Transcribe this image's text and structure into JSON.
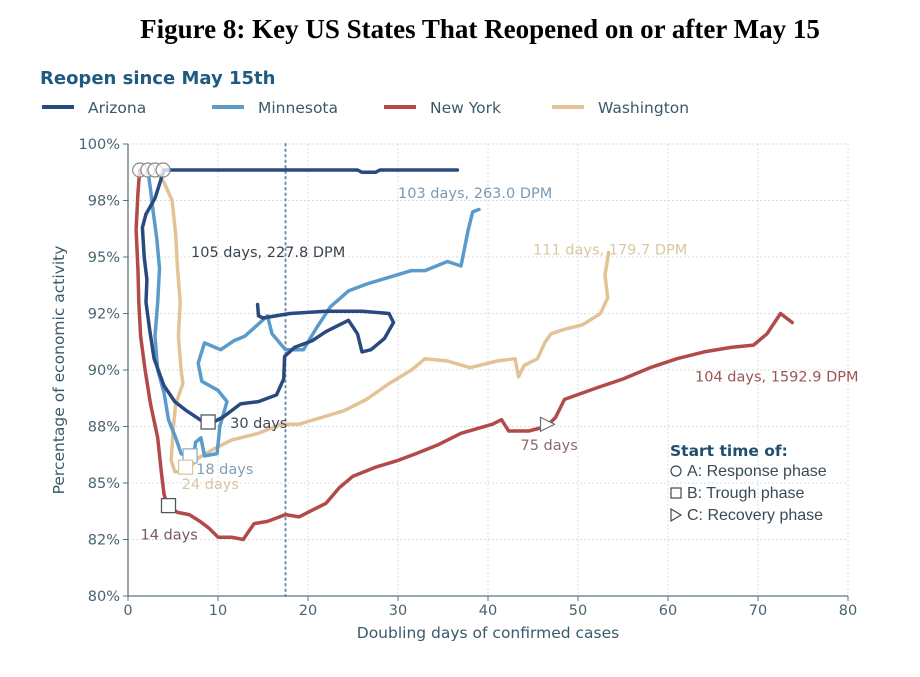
{
  "figure_title": "Figure 8: Key US States That Reopened on or after May 15",
  "chart_data": {
    "type": "line",
    "title": "Reopen since May 15th",
    "xlabel": "Doubling days of confirmed cases",
    "ylabel": "Percentage of economic activity",
    "xlim": [
      0,
      80
    ],
    "ylim": [
      80,
      100
    ],
    "xticks": [
      0,
      10,
      20,
      30,
      40,
      50,
      60,
      70,
      80
    ],
    "xtick_labels": [
      "0",
      "10",
      "20",
      "30",
      "40",
      "50",
      "60",
      "70",
      "80"
    ],
    "yticks": [
      80,
      82.5,
      85,
      87.5,
      90,
      92.5,
      95,
      97.5,
      100
    ],
    "ytick_labels": [
      "80%",
      "82%",
      "85%",
      "88%",
      "90%",
      "92%",
      "95%",
      "98%",
      "100%"
    ],
    "grid": true,
    "legend_position": "top",
    "reference_line": {
      "x": 17.5,
      "style": "dotted"
    },
    "series": [
      {
        "name": "Arizona",
        "color": "#2a4a7f",
        "points": [
          [
            36.6,
            98.85
          ],
          [
            28,
            98.85
          ],
          [
            27.5,
            98.75
          ],
          [
            26,
            98.75
          ],
          [
            25.5,
            98.85
          ],
          [
            4.0,
            98.85
          ],
          [
            3.0,
            97.6
          ],
          [
            2.0,
            96.9
          ],
          [
            1.6,
            96.3
          ],
          [
            1.8,
            95.0
          ],
          [
            2.1,
            94.0
          ],
          [
            2.0,
            93.0
          ],
          [
            2.4,
            91.8
          ],
          [
            2.9,
            90.5
          ],
          [
            4.0,
            89.3
          ],
          [
            5.2,
            88.6
          ],
          [
            6.5,
            88.2
          ],
          [
            8.0,
            87.8
          ],
          [
            9.0,
            87.6
          ],
          [
            10.5,
            87.9
          ],
          [
            12.5,
            88.5
          ],
          [
            14.5,
            88.6
          ],
          [
            16.5,
            88.9
          ],
          [
            17.3,
            89.6
          ],
          [
            17.4,
            90.6
          ],
          [
            18.5,
            91.0
          ],
          [
            20.5,
            91.3
          ],
          [
            22.0,
            91.7
          ],
          [
            24.5,
            92.2
          ],
          [
            25.5,
            91.6
          ],
          [
            26.0,
            90.8
          ],
          [
            27.0,
            90.9
          ],
          [
            28.5,
            91.4
          ],
          [
            29.5,
            92.1
          ],
          [
            29.0,
            92.5
          ],
          [
            26.0,
            92.6
          ],
          [
            22.0,
            92.6
          ],
          [
            18.0,
            92.5
          ],
          [
            15.0,
            92.3
          ],
          [
            14.5,
            92.4
          ],
          [
            14.4,
            92.9
          ]
        ]
      },
      {
        "name": "Minnesota",
        "color": "#5b9bcb",
        "points": [
          [
            2.2,
            98.85
          ],
          [
            2.5,
            98.0
          ],
          [
            2.8,
            97.0
          ],
          [
            3.2,
            95.8
          ],
          [
            3.5,
            94.5
          ],
          [
            3.3,
            93.0
          ],
          [
            3.0,
            91.5
          ],
          [
            3.3,
            90.0
          ],
          [
            4.0,
            89.0
          ],
          [
            4.5,
            87.8
          ],
          [
            5.3,
            87.0
          ],
          [
            5.9,
            86.3
          ],
          [
            6.5,
            86.2
          ],
          [
            7.3,
            86.1
          ],
          [
            7.5,
            86.8
          ],
          [
            8.1,
            87.0
          ],
          [
            8.5,
            86.2
          ],
          [
            9.9,
            86.3
          ],
          [
            10.2,
            87.5
          ],
          [
            11.0,
            88.6
          ],
          [
            10.0,
            89.1
          ],
          [
            8.2,
            89.5
          ],
          [
            7.8,
            90.3
          ],
          [
            8.5,
            91.2
          ],
          [
            10.3,
            90.9
          ],
          [
            11.8,
            91.3
          ],
          [
            13.0,
            91.5
          ],
          [
            15.5,
            92.4
          ],
          [
            16.0,
            91.6
          ],
          [
            17.5,
            90.9
          ],
          [
            19.5,
            90.9
          ],
          [
            21.0,
            91.9
          ],
          [
            22.5,
            92.8
          ],
          [
            24.5,
            93.5
          ],
          [
            26.5,
            93.8
          ],
          [
            29.0,
            94.1
          ],
          [
            31.5,
            94.4
          ],
          [
            33.0,
            94.4
          ],
          [
            35.5,
            94.8
          ],
          [
            37.0,
            94.6
          ],
          [
            37.8,
            96.2
          ],
          [
            38.3,
            97.0
          ],
          [
            39.0,
            97.1
          ]
        ]
      },
      {
        "name": "New York",
        "color": "#b24a4a",
        "points": [
          [
            1.3,
            98.85
          ],
          [
            1.1,
            97.8
          ],
          [
            0.9,
            96.2
          ],
          [
            1.1,
            94.5
          ],
          [
            1.2,
            93.0
          ],
          [
            1.4,
            91.5
          ],
          [
            1.9,
            90.0
          ],
          [
            2.5,
            88.5
          ],
          [
            3.3,
            87.0
          ],
          [
            3.7,
            85.5
          ],
          [
            4.0,
            84.5
          ],
          [
            4.4,
            84.0
          ],
          [
            5.5,
            83.7
          ],
          [
            6.8,
            83.6
          ],
          [
            8.0,
            83.3
          ],
          [
            9.0,
            83.0
          ],
          [
            10.0,
            82.6
          ],
          [
            11.5,
            82.6
          ],
          [
            12.8,
            82.5
          ],
          [
            14.0,
            83.2
          ],
          [
            15.5,
            83.3
          ],
          [
            17.5,
            83.6
          ],
          [
            19.0,
            83.5
          ],
          [
            20.5,
            83.8
          ],
          [
            22.0,
            84.1
          ],
          [
            23.5,
            84.8
          ],
          [
            25.0,
            85.3
          ],
          [
            27.5,
            85.7
          ],
          [
            30.0,
            86.0
          ],
          [
            32.0,
            86.3
          ],
          [
            34.5,
            86.7
          ],
          [
            37.0,
            87.2
          ],
          [
            40.5,
            87.6
          ],
          [
            41.5,
            87.8
          ],
          [
            42.3,
            87.3
          ],
          [
            44.5,
            87.3
          ],
          [
            46.5,
            87.5
          ],
          [
            47.5,
            87.9
          ],
          [
            48.5,
            88.7
          ],
          [
            52.0,
            89.2
          ],
          [
            55.0,
            89.6
          ],
          [
            58.0,
            90.1
          ],
          [
            61.0,
            90.5
          ],
          [
            64.0,
            90.8
          ],
          [
            67.0,
            91.0
          ],
          [
            69.5,
            91.1
          ],
          [
            71.0,
            91.6
          ],
          [
            72.5,
            92.5
          ],
          [
            73.8,
            92.1
          ]
        ]
      },
      {
        "name": "Washington",
        "color": "#e3c396",
        "points": [
          [
            3.0,
            98.85
          ],
          [
            4.0,
            98.3
          ],
          [
            4.9,
            97.5
          ],
          [
            5.3,
            96.0
          ],
          [
            5.5,
            94.5
          ],
          [
            5.8,
            93.0
          ],
          [
            5.6,
            91.5
          ],
          [
            5.9,
            90.0
          ],
          [
            6.1,
            89.4
          ],
          [
            5.3,
            88.5
          ],
          [
            5.0,
            87.3
          ],
          [
            4.8,
            86.0
          ],
          [
            5.2,
            85.5
          ],
          [
            6.5,
            85.5
          ],
          [
            7.8,
            86.1
          ],
          [
            9.5,
            86.5
          ],
          [
            11.5,
            86.9
          ],
          [
            14.5,
            87.2
          ],
          [
            17.0,
            87.6
          ],
          [
            19.0,
            87.6
          ],
          [
            21.5,
            87.9
          ],
          [
            24.0,
            88.2
          ],
          [
            26.5,
            88.7
          ],
          [
            29.0,
            89.4
          ],
          [
            31.5,
            90.0
          ],
          [
            33.0,
            90.5
          ],
          [
            35.5,
            90.4
          ],
          [
            38.0,
            90.1
          ],
          [
            41.0,
            90.4
          ],
          [
            43.0,
            90.5
          ],
          [
            43.4,
            89.7
          ],
          [
            44.0,
            90.2
          ],
          [
            45.5,
            90.5
          ],
          [
            46.3,
            91.2
          ],
          [
            47.0,
            91.6
          ],
          [
            48.5,
            91.8
          ],
          [
            50.5,
            92.0
          ],
          [
            52.5,
            92.5
          ],
          [
            53.3,
            93.2
          ],
          [
            53.0,
            94.2
          ],
          [
            53.4,
            95.2
          ]
        ]
      }
    ],
    "markers": {
      "response": [
        {
          "series": "New York",
          "x": 1.3,
          "y": 98.85
        },
        {
          "series": "Minnesota",
          "x": 2.2,
          "y": 98.85
        },
        {
          "series": "Washington",
          "x": 3.0,
          "y": 98.85
        },
        {
          "series": "Arizona",
          "x": 3.9,
          "y": 98.85
        }
      ],
      "trough": [
        {
          "series": "Arizona",
          "x": 8.9,
          "y": 87.7,
          "label": "30 days"
        },
        {
          "series": "Minnesota",
          "x": 6.9,
          "y": 86.2,
          "label": "18 days"
        },
        {
          "series": "Washington",
          "x": 6.4,
          "y": 85.7,
          "label": "24 days"
        },
        {
          "series": "New York",
          "x": 4.5,
          "y": 84.0,
          "label": "14 days"
        }
      ],
      "recovery": [
        {
          "series": "New York",
          "x": 46.5,
          "y": 87.6,
          "label": "75 days"
        }
      ]
    },
    "annotations": [
      {
        "series": "Arizona",
        "text": "105 days, 227.8 DPM",
        "x": 7,
        "y": 95.0
      },
      {
        "series": "Minnesota",
        "text": "103 days, 263.0 DPM",
        "x": 30,
        "y": 97.6
      },
      {
        "series": "Washington",
        "text": "111 days, 179.7 DPM",
        "x": 45,
        "y": 95.1
      },
      {
        "series": "New York",
        "text": "104 days, 1592.9 DPM",
        "x": 63,
        "y": 89.5
      }
    ],
    "phase_legend": {
      "title": "Start time of:",
      "items": [
        {
          "symbol": "circle",
          "label": "A: Response phase"
        },
        {
          "symbol": "square",
          "label": "B: Trough phase"
        },
        {
          "symbol": "triangle",
          "label": "C: Recovery phase"
        }
      ]
    }
  },
  "colors": {
    "title_blue": "#1f5a80",
    "axis": "#5a7580",
    "grid": "#d8dde0"
  }
}
